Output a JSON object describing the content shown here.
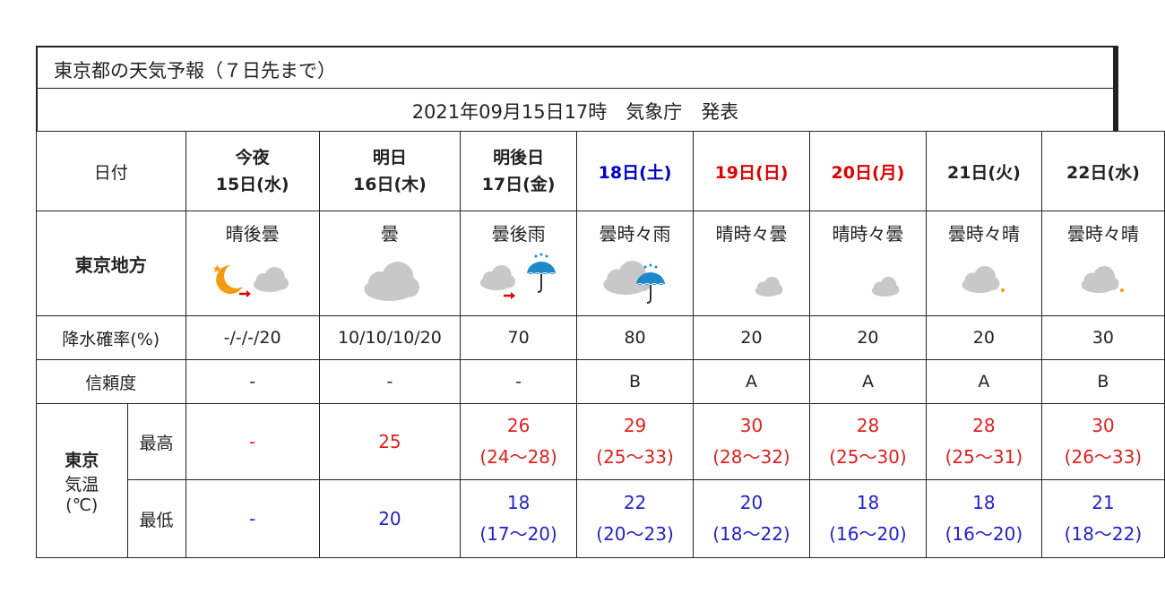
{
  "title": "東京都の天気予報（７日先まで）",
  "issued": "2021年09月15日17時　気象庁　発表",
  "labels": {
    "date": "日付",
    "region": "東京地方",
    "pop": "降水確率(%)",
    "reliability": "信頼度",
    "temp_city": "東京",
    "temp_label1": "気温",
    "temp_label2": "(℃)",
    "max": "最高",
    "min": "最低"
  },
  "days": [
    {
      "line1": "今夜",
      "line2": "15日(水)",
      "weather": "晴後曇",
      "icon": "moon-then-cloud-icon",
      "pop": "-/-/-/20",
      "rel": "-",
      "max": "-",
      "max_range": "",
      "min": "-",
      "min_range": ""
    },
    {
      "line1": "明日",
      "line2": "16日(木)",
      "weather": "曇",
      "icon": "cloud-icon",
      "pop": "10/10/10/20",
      "rel": "-",
      "max": "25",
      "max_range": "",
      "min": "20",
      "min_range": ""
    },
    {
      "line1": "明後日",
      "line2": "17日(金)",
      "weather": "曇後雨",
      "icon": "cloud-then-rain-icon",
      "pop": "70",
      "rel": "-",
      "max": "26",
      "max_range": "(24～28)",
      "min": "18",
      "min_range": "(17～20)"
    },
    {
      "line1": "18日(土)",
      "line2": "",
      "color": "#0000cc",
      "weather": "曇時々雨",
      "icon": "cloud-sometimes-rain-icon",
      "pop": "80",
      "rel": "B",
      "max": "29",
      "max_range": "(25～33)",
      "min": "22",
      "min_range": "(20～23)"
    },
    {
      "line1": "19日(日)",
      "line2": "",
      "color": "#e00000",
      "weather": "晴時々曇",
      "icon": "small-cloud-icon",
      "pop": "20",
      "rel": "A",
      "max": "30",
      "max_range": "(28～32)",
      "min": "20",
      "min_range": "(18～22)"
    },
    {
      "line1": "20日(月)",
      "line2": "",
      "color": "#e00000",
      "weather": "晴時々曇",
      "icon": "small-cloud-icon",
      "pop": "20",
      "rel": "A",
      "max": "28",
      "max_range": "(25～30)",
      "min": "18",
      "min_range": "(16～20)"
    },
    {
      "line1": "21日(火)",
      "line2": "",
      "weather": "曇時々晴",
      "icon": "cloud-sun-icon",
      "pop": "20",
      "rel": "A",
      "max": "28",
      "max_range": "(25～31)",
      "min": "18",
      "min_range": "(16～20)"
    },
    {
      "line1": "22日(水)",
      "line2": "",
      "weather": "曇時々晴",
      "icon": "cloud-sun-icon",
      "pop": "30",
      "rel": "B",
      "max": "30",
      "max_range": "(26～33)",
      "min": "21",
      "min_range": "(18～22)"
    }
  ],
  "colors": {
    "max_temp": "#e02020",
    "min_temp": "#2222cc",
    "saturday": "#0000cc",
    "holiday": "#e00000"
  }
}
